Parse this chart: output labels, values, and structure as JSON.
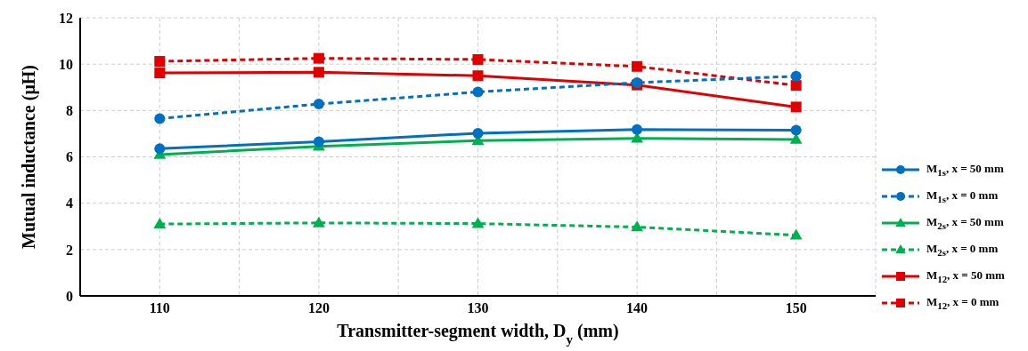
{
  "chart_data": {
    "type": "line",
    "xlabel": "Transmitter-segment width, D$_{y}$ (mm)",
    "ylabel": "Mutual inductance (μH)",
    "x": [
      110,
      120,
      130,
      140,
      150
    ],
    "xlim": [
      105,
      155
    ],
    "xticks": [
      110,
      {
        "value": 115,
        "label": null
      },
      120,
      {
        "value": 125,
        "label": null
      },
      130,
      {
        "value": 135,
        "label": null
      },
      140,
      {
        "value": 145,
        "label": null
      },
      150,
      {
        "value": 155,
        "label": null
      }
    ],
    "ylim": [
      0,
      12
    ],
    "yticks": [
      0,
      2,
      4,
      6,
      8,
      10,
      12
    ],
    "grid": true,
    "legend": "right",
    "series": [
      {
        "name": "M$_{1s}$, x = 50 mm",
        "color": "#0070c0",
        "marker": "circle",
        "line_style": "solid",
        "values": [
          6.35,
          6.65,
          7.02,
          7.18,
          7.15
        ]
      },
      {
        "name": "M$_{1s}$, x = 0 mm",
        "color": "#0070c0",
        "marker": "circle",
        "line_style": "dashed",
        "values": [
          7.65,
          8.28,
          8.8,
          9.2,
          9.48
        ]
      },
      {
        "name": "M$_{2s}$, x = 50 mm",
        "color": "#00b050",
        "marker": "triangle",
        "line_style": "solid",
        "values": [
          6.1,
          6.45,
          6.7,
          6.8,
          6.75
        ]
      },
      {
        "name": "M$_{2s}$, x = 0 mm",
        "color": "#00b050",
        "marker": "triangle",
        "line_style": "dashed",
        "values": [
          3.1,
          3.15,
          3.12,
          2.97,
          2.62
        ]
      },
      {
        "name": "M$_{12}$, x = 50 mm",
        "color": "#e00000",
        "marker": "square",
        "line_style": "solid",
        "values": [
          9.62,
          9.65,
          9.5,
          9.1,
          8.15
        ]
      },
      {
        "name": "M$_{12}$, x = 0 mm",
        "color": "#e00000",
        "marker": "square",
        "line_style": "dashed",
        "values": [
          10.12,
          10.25,
          10.2,
          9.9,
          9.08
        ]
      }
    ]
  }
}
